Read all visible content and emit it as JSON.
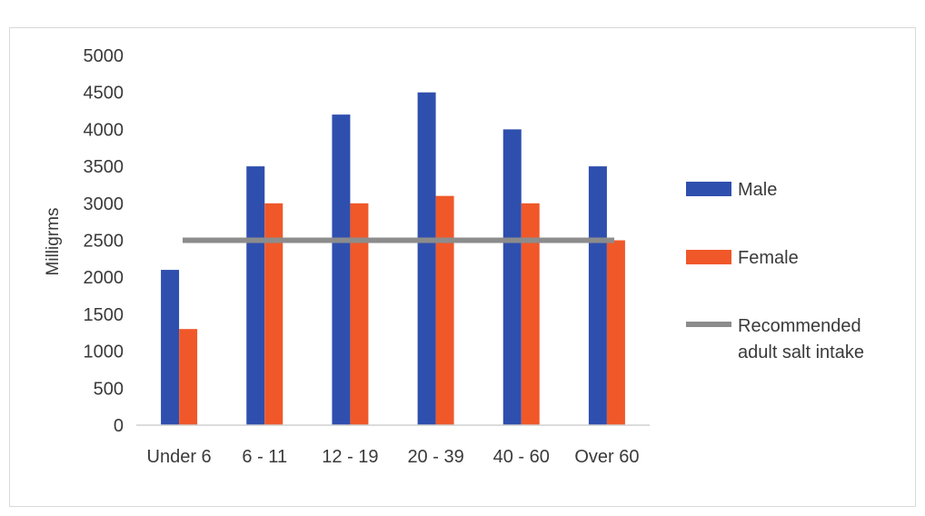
{
  "chart_data": {
    "type": "bar",
    "title": "",
    "xlabel": "",
    "ylabel": "Milligrms",
    "ylim": [
      0,
      5000
    ],
    "yticks": [
      0,
      500,
      1000,
      1500,
      2000,
      2500,
      3000,
      3500,
      4000,
      4500,
      5000
    ],
    "categories": [
      "Under 6",
      "6 - 11",
      "12 - 19",
      "20 - 39",
      "40 - 60",
      "Over 60"
    ],
    "series": [
      {
        "name": "Male",
        "color": "#2f4fae",
        "values": [
          2100,
          3500,
          4200,
          4500,
          4000,
          3500
        ]
      },
      {
        "name": "Female",
        "color": "#f0582a",
        "values": [
          1300,
          3000,
          3000,
          3100,
          3000,
          2500
        ]
      }
    ],
    "reference_line": {
      "name": "Recommended adult salt intake",
      "name_lines": [
        "Recommended",
        "adult salt intake"
      ],
      "value": 2500,
      "color": "#8c8c8c"
    },
    "grid": false,
    "legend_position": "right"
  }
}
